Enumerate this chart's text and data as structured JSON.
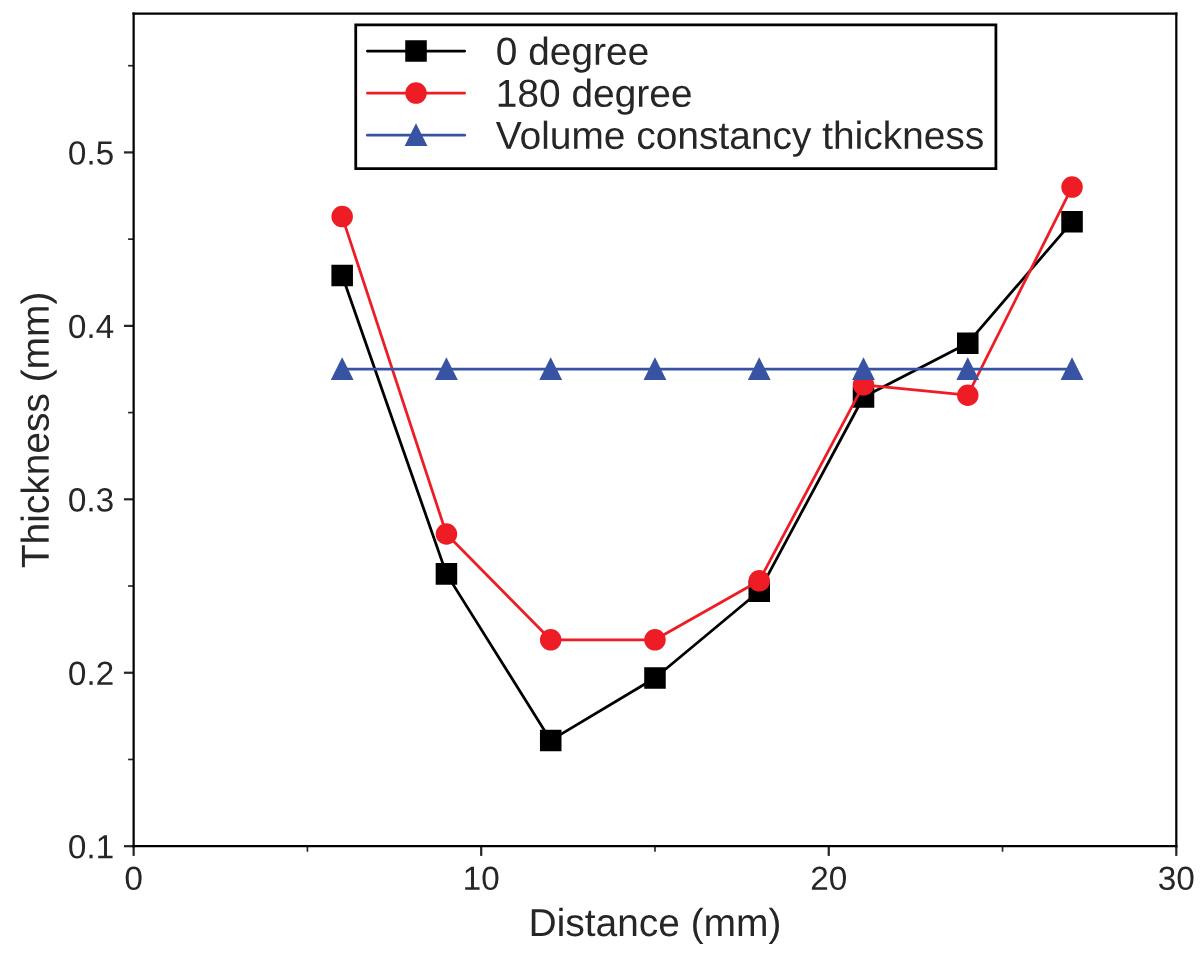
{
  "chart_data": {
    "type": "line",
    "xlabel": "Distance (mm)",
    "ylabel": "Thickness (mm)",
    "x": [
      6,
      9,
      12,
      15,
      18,
      21,
      24,
      27
    ],
    "series": [
      {
        "name": "0 degree",
        "color": "#000000",
        "marker": "square",
        "values": [
          0.429,
          0.257,
          0.161,
          0.197,
          0.247,
          0.359,
          0.39,
          0.46
        ]
      },
      {
        "name": "180 degree",
        "color": "#ee1c25",
        "marker": "circle",
        "values": [
          0.463,
          0.28,
          0.219,
          0.219,
          0.253,
          0.366,
          0.36,
          0.48
        ]
      },
      {
        "name": "Volume constancy thickness",
        "color": "#3953a4",
        "marker": "triangle",
        "values": [
          0.375,
          0.375,
          0.375,
          0.375,
          0.375,
          0.375,
          0.375,
          0.375
        ]
      }
    ],
    "xlim": [
      0,
      30
    ],
    "xticks": [
      0,
      10,
      20,
      30
    ],
    "ylim": [
      0.1,
      0.58
    ],
    "yticks": [
      0.1,
      0.2,
      0.3,
      0.4,
      0.5
    ],
    "grid": false,
    "legend": "top",
    "line_style": "solid"
  }
}
